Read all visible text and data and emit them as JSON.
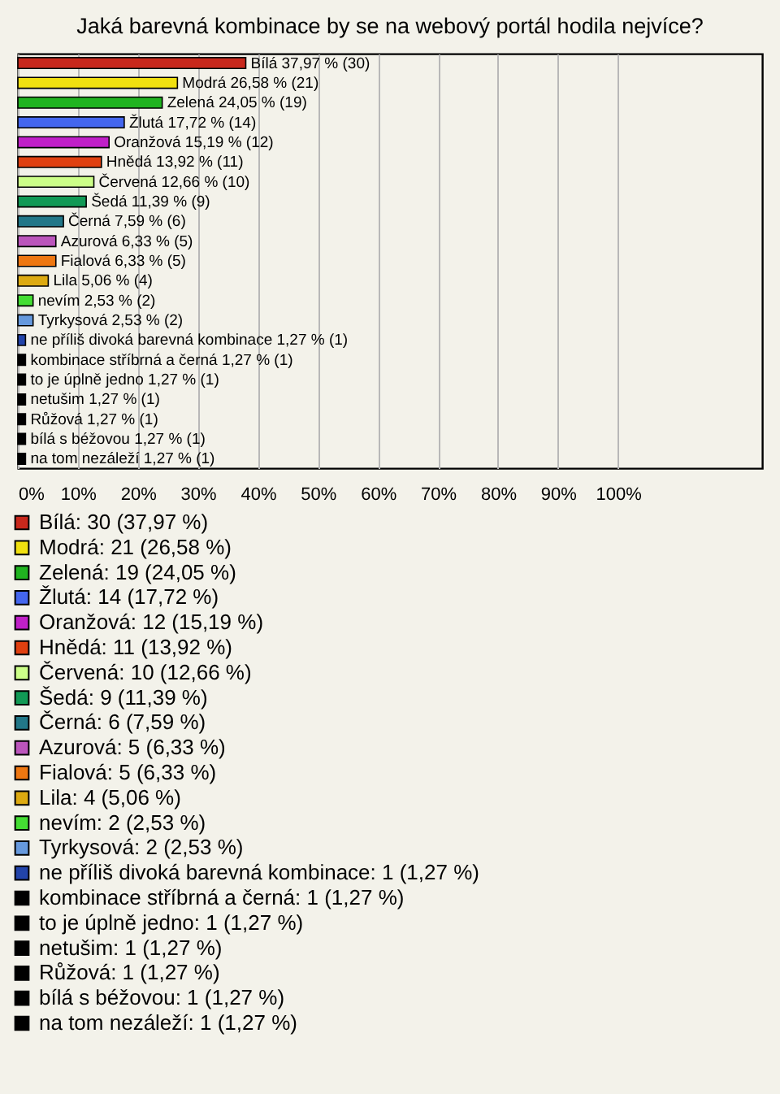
{
  "chart_data": {
    "type": "bar",
    "orientation": "horizontal",
    "title": "Jaká barevná kombinace by se na webový portál hodila nejvíce?",
    "categories": [
      "Bílá",
      "Modrá",
      "Zelená",
      "Žlutá",
      "Oranžová",
      "Hnědá",
      "Červená",
      "Šedá",
      "Černá",
      "Azurová",
      "Fialová",
      "Lila",
      "nevím",
      "Tyrkysová",
      "ne příliš divoká barevná kombinace",
      "kombinace stříbrná a černá",
      "to je úplně jedno",
      "netušim",
      "Růžová",
      "bílá s béžovou",
      "na tom nezáleží"
    ],
    "values": [
      37.97,
      26.58,
      24.05,
      17.72,
      15.19,
      13.92,
      12.66,
      11.39,
      7.59,
      6.33,
      6.33,
      5.06,
      2.53,
      2.53,
      1.27,
      1.27,
      1.27,
      1.27,
      1.27,
      1.27,
      1.27
    ],
    "value_labels": [
      "37,97 % (30)",
      "26,58 % (21)",
      "24,05 % (19)",
      "17,72 % (14)",
      "15,19 % (12)",
      "13,92 % (11)",
      "12,66 % (10)",
      "11,39 % (9)",
      "7,59 % (6)",
      "6,33 % (5)",
      "6,33 % (5)",
      "5,06 % (4)",
      "2,53 % (2)",
      "2,53 % (2)",
      "1,27 % (1)",
      "1,27 % (1)",
      "1,27 % (1)",
      "1,27 % (1)",
      "1,27 % (1)",
      "1,27 % (1)",
      "1,27 % (1)"
    ],
    "colors": [
      "#c8281c",
      "#f0e010",
      "#20b420",
      "#4466ee",
      "#c020c8",
      "#e04010",
      "#ccff88",
      "#119955",
      "#227788",
      "#bb55bb",
      "#ee7711",
      "#ddaa11",
      "#44dd33",
      "#6699dd",
      "#2244aa",
      "#000000",
      "#000000",
      "#000000",
      "#000000",
      "#000000",
      "#000000"
    ],
    "xlim": [
      0,
      124
    ],
    "xticks": [
      {
        "value": 0,
        "label": "0%"
      },
      {
        "value": 10,
        "label": "10%"
      },
      {
        "value": 20,
        "label": "20%"
      },
      {
        "value": 30,
        "label": "30%"
      },
      {
        "value": 40,
        "label": "40%"
      },
      {
        "value": 50,
        "label": "50%"
      },
      {
        "value": 60,
        "label": "60%"
      },
      {
        "value": 70,
        "label": "70%"
      },
      {
        "value": 80,
        "label": "80%"
      },
      {
        "value": 90,
        "label": "90%"
      },
      {
        "value": 100,
        "label": "100%"
      }
    ],
    "grid": "x",
    "tick_labels": "x",
    "annotations": [
      "Bílá: 30 (37,97 %)",
      "Modrá: 21 (26,58 %)",
      "Zelená: 19 (24,05 %)",
      "Žlutá: 14 (17,72 %)",
      "Oranžová: 12 (15,19 %)",
      "Hnědá: 11 (13,92 %)",
      "Červená: 10 (12,66 %)",
      "Šedá: 9 (11,39 %)",
      "Černá: 6 (7,59 %)",
      "Azurová: 5 (6,33 %)",
      "Fialová: 5 (6,33 %)",
      "Lila: 4 (5,06 %)",
      "nevím: 2 (2,53 %)",
      "Tyrkysová: 2 (2,53 %)",
      "ne příliš divoká barevná kombinace: 1 (1,27 %)",
      "kombinace stříbrná a černá: 1 (1,27 %)",
      "to je úplně jedno: 1 (1,27 %)",
      "netušim: 1 (1,27 %)",
      "Růžová: 1 (1,27 %)",
      "bílá s béžovou: 1 (1,27 %)",
      "na tom nezáleží: 1 (1,27 %)"
    ]
  }
}
